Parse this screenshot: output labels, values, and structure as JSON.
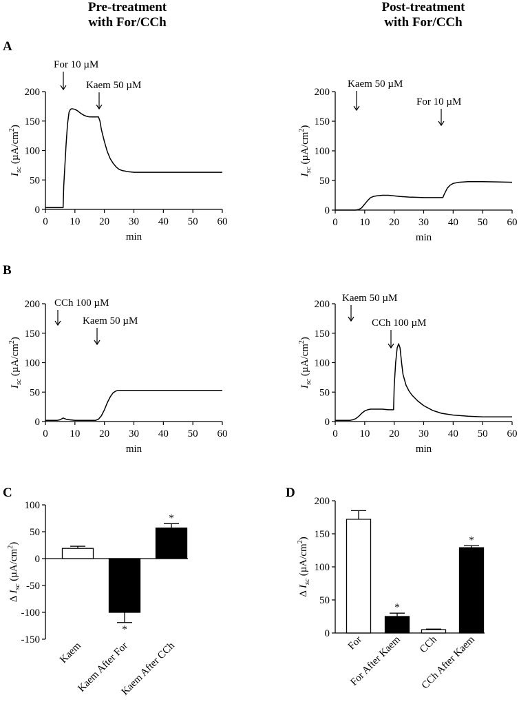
{
  "headings": {
    "left": {
      "line1": "Pre-treatment",
      "line2": "with For/CCh"
    },
    "right": {
      "line1": "Post-treatment",
      "line2": "with For/CCh"
    }
  },
  "panels": {
    "A": "A",
    "B": "B",
    "C": "C",
    "D": "D"
  },
  "chart_data": [
    {
      "id": "A-left",
      "type": "line",
      "panel": "A",
      "xlabel": "min",
      "ylabel_main": "I",
      "ylabel_sub": "sc",
      "ylabel_unit": " (µA/cm",
      "ylabel_sup": "2",
      "ylabel_close": ")",
      "xlim": [
        0,
        60
      ],
      "ylim": [
        0,
        200
      ],
      "xticks": [
        "0",
        "10",
        "20",
        "30",
        "40",
        "50",
        "60"
      ],
      "yticks": [
        "0",
        "50",
        "100",
        "150",
        "200"
      ],
      "annotations": [
        {
          "text": "For 10 µM",
          "x": 6
        },
        {
          "text": "Kaem 50 µM",
          "x": 18
        }
      ],
      "x": [
        0,
        6,
        6.2,
        6.6,
        7,
        7.5,
        8,
        8.5,
        9,
        10,
        11,
        12,
        13,
        14,
        15,
        16,
        17,
        18,
        18.5,
        19,
        20,
        21,
        22,
        23,
        24,
        25,
        26,
        27,
        28,
        30,
        35,
        40,
        50,
        60
      ],
      "y": [
        3,
        3,
        40,
        75,
        110,
        145,
        165,
        170,
        171,
        170,
        167,
        163,
        160,
        158,
        157,
        157,
        157,
        157,
        150,
        135,
        115,
        98,
        86,
        78,
        72,
        68,
        66,
        65,
        64,
        63,
        63,
        63,
        63,
        63
      ]
    },
    {
      "id": "A-right",
      "type": "line",
      "panel": "A",
      "xlabel": "min",
      "ylabel_main": "I",
      "ylabel_sub": "sc",
      "ylabel_unit": " (µA/cm",
      "ylabel_sup": "2",
      "ylabel_close": ")",
      "xlim": [
        0,
        60
      ],
      "ylim": [
        0,
        200
      ],
      "xticks": [
        "0",
        "10",
        "20",
        "30",
        "40",
        "50",
        "60"
      ],
      "yticks": [
        "0",
        "50",
        "100",
        "150",
        "200"
      ],
      "annotations": [
        {
          "text": "Kaem 50 µM",
          "x": 7
        },
        {
          "text": "For 10 µM",
          "x": 36
        }
      ],
      "x": [
        0,
        5,
        7,
        8,
        9,
        10,
        11,
        12,
        13,
        14,
        16,
        18,
        20,
        22,
        25,
        28,
        30,
        33,
        35,
        36.5,
        37,
        38,
        39,
        40,
        42,
        45,
        50,
        55,
        60
      ],
      "y": [
        0,
        0,
        0,
        1,
        4,
        10,
        16,
        21,
        23,
        24,
        25,
        25,
        24,
        23,
        22,
        21.5,
        21,
        21,
        21,
        21,
        27,
        37,
        42,
        45,
        47,
        48,
        48,
        47.5,
        47
      ]
    },
    {
      "id": "B-left",
      "type": "line",
      "panel": "B",
      "xlabel": "min",
      "ylabel_main": "I",
      "ylabel_sub": "sc",
      "ylabel_unit": " (µA/cm",
      "ylabel_sup": "2",
      "ylabel_close": ")",
      "xlim": [
        0,
        60
      ],
      "ylim": [
        0,
        200
      ],
      "xticks": [
        "0",
        "10",
        "20",
        "30",
        "40",
        "50",
        "60"
      ],
      "yticks": [
        "0",
        "50",
        "100",
        "150",
        "200"
      ],
      "annotations": [
        {
          "text": "CCh 100 µM",
          "x": 4
        },
        {
          "text": "Kaem 50 µM",
          "x": 18
        }
      ],
      "x": [
        0,
        4,
        5,
        6,
        7,
        8,
        10,
        12,
        14,
        16,
        17,
        18,
        19,
        20,
        21,
        22,
        23,
        24,
        25,
        26,
        28,
        30,
        40,
        50,
        60
      ],
      "y": [
        2,
        2,
        3,
        6,
        4,
        3,
        2,
        2,
        2,
        2,
        2,
        4,
        10,
        20,
        32,
        42,
        49,
        52,
        53,
        53,
        53,
        53,
        53,
        53,
        53
      ]
    },
    {
      "id": "B-right",
      "type": "line",
      "panel": "B",
      "xlabel": "min",
      "ylabel_main": "I",
      "ylabel_sub": "sc",
      "ylabel_unit": " (µA/cm",
      "ylabel_sup": "2",
      "ylabel_close": ")",
      "xlim": [
        0,
        60
      ],
      "ylim": [
        0,
        200
      ],
      "xticks": [
        "0",
        "10",
        "20",
        "30",
        "40",
        "50",
        "60"
      ],
      "yticks": [
        "0",
        "50",
        "100",
        "150",
        "200"
      ],
      "annotations": [
        {
          "text": "Kaem 50 µM",
          "x": 5
        },
        {
          "text": "CCh 100 µM",
          "x": 19
        }
      ],
      "x": [
        0,
        5,
        6,
        7,
        8,
        9,
        10,
        11,
        12,
        14,
        16,
        18,
        19,
        19.8,
        20,
        20.5,
        21,
        21.5,
        22,
        22.5,
        23,
        24,
        25,
        26,
        28,
        30,
        33,
        36,
        40,
        45,
        50,
        55,
        60
      ],
      "y": [
        2,
        2,
        3,
        5,
        9,
        14,
        18,
        20,
        21,
        21,
        21,
        20,
        20,
        20,
        60,
        100,
        125,
        132,
        125,
        100,
        80,
        62,
        52,
        45,
        35,
        27,
        19,
        14,
        11,
        9,
        8,
        8,
        8
      ]
    },
    {
      "id": "C",
      "type": "bar",
      "panel": "C",
      "ylabel_main": "I",
      "ylabel_sub": "sc",
      "ylabel_unit": " (µA/cm",
      "ylabel_sup": "2",
      "ylabel_close": ")",
      "ylabel_prefix": "Δ ",
      "ylim": [
        -150,
        100
      ],
      "yticks": [
        "100",
        "50",
        "0",
        "-50",
        "-100",
        "-150"
      ],
      "categories": [
        "Kaem",
        "Kaem After For",
        "Kaem After CCh"
      ],
      "values": [
        19,
        -100,
        57
      ],
      "errors": [
        4,
        19,
        8
      ],
      "fills": [
        "#ffffff",
        "#000000",
        "#000000"
      ],
      "significance": [
        "",
        "*",
        "*"
      ]
    },
    {
      "id": "D",
      "type": "bar",
      "panel": "D",
      "ylabel_main": "I",
      "ylabel_sub": "sc",
      "ylabel_unit": " (µA/cm",
      "ylabel_sup": "2",
      "ylabel_close": ")",
      "ylabel_prefix": "Δ ",
      "ylim": [
        0,
        200
      ],
      "yticks": [
        "200",
        "150",
        "100",
        "50",
        "0"
      ],
      "categories": [
        "For",
        "For After Kaem",
        "CCh",
        "CCh After Kaem"
      ],
      "values": [
        172,
        25,
        5,
        129
      ],
      "errors": [
        13,
        5,
        1,
        3
      ],
      "fills": [
        "#ffffff",
        "#000000",
        "#ffffff",
        "#000000"
      ],
      "significance": [
        "",
        "*",
        "",
        "*"
      ]
    }
  ]
}
